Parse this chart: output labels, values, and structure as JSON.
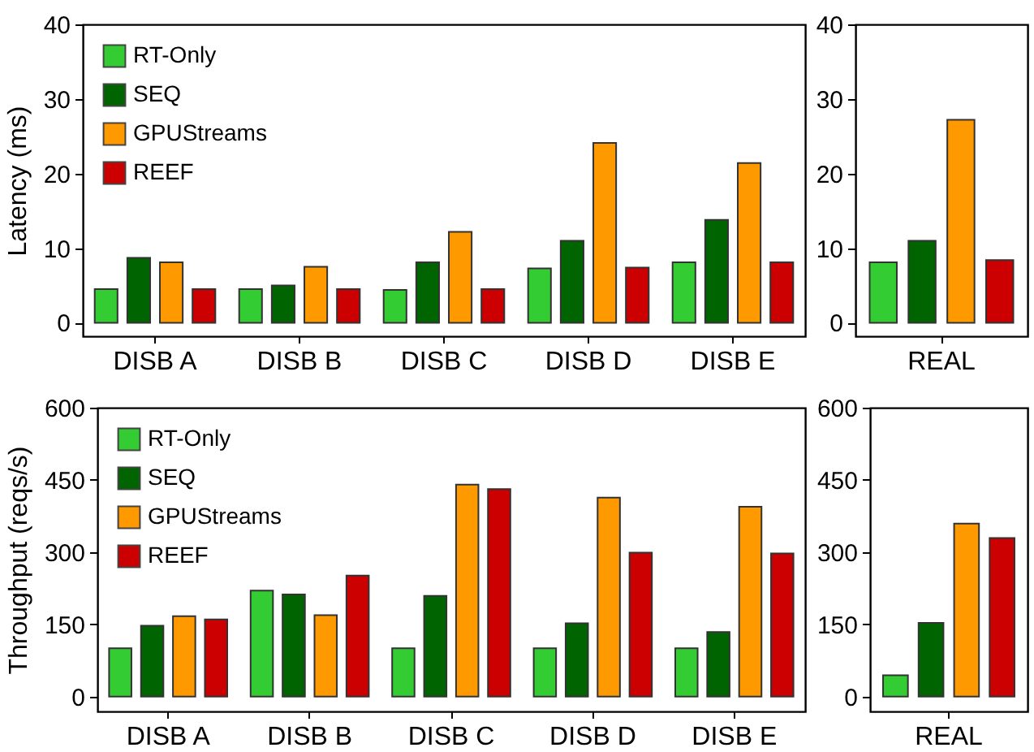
{
  "chart_data": [
    {
      "type": "bar",
      "ylabel": "Latency (ms)",
      "categories": [
        "DISB A",
        "DISB B",
        "DISB C",
        "DISB D",
        "DISB E"
      ],
      "ylim": [
        -1.8,
        40
      ],
      "yticks": [
        0,
        10,
        20,
        30,
        40
      ],
      "grid": false,
      "legend": "top left",
      "series": [
        {
          "name": "RT-Only",
          "color": "#33cc33",
          "values": [
            4.5,
            4.5,
            4.4,
            7.3,
            8.1
          ]
        },
        {
          "name": "SEQ",
          "color": "#006400",
          "values": [
            8.7,
            5.0,
            8.1,
            11.0,
            13.8
          ]
        },
        {
          "name": "GPUStreams",
          "color": "#ff9900",
          "values": [
            8.1,
            7.5,
            12.2,
            24.1,
            21.4
          ]
        },
        {
          "name": "REEF",
          "color": "#cc0000",
          "values": [
            4.5,
            4.5,
            4.5,
            7.4,
            8.1
          ]
        }
      ]
    },
    {
      "type": "bar",
      "categories": [
        "REAL"
      ],
      "ylim": [
        -1.8,
        40
      ],
      "yticks": [
        0,
        10,
        20,
        30,
        40
      ],
      "grid": false,
      "series": [
        {
          "color": "#33cc33",
          "values": [
            8.1
          ]
        },
        {
          "color": "#006400",
          "values": [
            11.0
          ]
        },
        {
          "color": "#ff9900",
          "values": [
            27.2
          ]
        },
        {
          "color": "#cc0000",
          "values": [
            8.4
          ]
        }
      ]
    },
    {
      "type": "bar",
      "ylabel": "Throughput (reqs/s)",
      "categories": [
        "DISB A",
        "DISB B",
        "DISB C",
        "DISB D",
        "DISB E"
      ],
      "ylim": [
        -31,
        600
      ],
      "yticks": [
        0,
        150,
        300,
        450,
        600
      ],
      "grid": false,
      "legend": "top left",
      "series": [
        {
          "name": "RT-Only",
          "color": "#33cc33",
          "values": [
            100,
            220,
            100,
            100,
            100
          ]
        },
        {
          "name": "SEQ",
          "color": "#006400",
          "values": [
            147,
            212,
            209,
            152,
            134
          ]
        },
        {
          "name": "GPUStreams",
          "color": "#ff9900",
          "values": [
            167,
            169,
            440,
            413,
            394
          ]
        },
        {
          "name": "REEF",
          "color": "#cc0000",
          "values": [
            160,
            251,
            431,
            299,
            297
          ]
        }
      ]
    },
    {
      "type": "bar",
      "categories": [
        "REAL"
      ],
      "ylim": [
        -31,
        600
      ],
      "yticks": [
        0,
        150,
        300,
        450,
        600
      ],
      "grid": false,
      "series": [
        {
          "color": "#33cc33",
          "values": [
            44
          ]
        },
        {
          "color": "#006400",
          "values": [
            153
          ]
        },
        {
          "color": "#ff9900",
          "values": [
            359
          ]
        },
        {
          "color": "#cc0000",
          "values": [
            329
          ]
        }
      ]
    }
  ]
}
